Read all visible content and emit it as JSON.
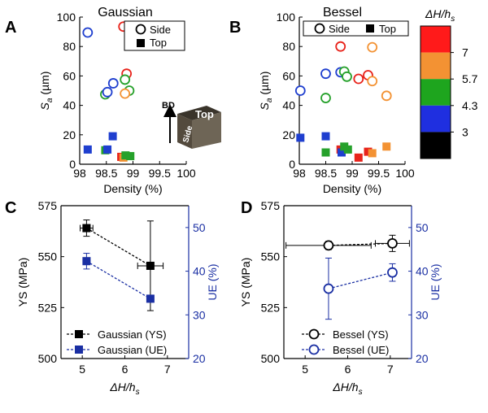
{
  "chart_data": [
    {
      "panel": "A",
      "type": "scatter",
      "title": "Gaussian",
      "xlabel": "Density (%)",
      "ylabel": "S_a (µm)",
      "xlim": [
        98,
        100
      ],
      "ylim": [
        0,
        100
      ],
      "xticks": [
        "98",
        "98.5",
        "99",
        "99.5",
        "100"
      ],
      "yticks": [
        "0",
        "20",
        "40",
        "60",
        "80",
        "100"
      ],
      "legend": [
        "Side",
        "Top"
      ],
      "series": [
        {
          "name": "Side",
          "marker": "open-circle",
          "points": [
            {
              "x": 98.15,
              "y": 89.5,
              "color": "#1f3fcf"
            },
            {
              "x": 98.82,
              "y": 93.5,
              "color": "#e8231b"
            },
            {
              "x": 98.88,
              "y": 61.5,
              "color": "#e8231b"
            },
            {
              "x": 98.63,
              "y": 55,
              "color": "#1f3fcf"
            },
            {
              "x": 98.85,
              "y": 57.5,
              "color": "#26a12b"
            },
            {
              "x": 98.93,
              "y": 50,
              "color": "#26a12b"
            },
            {
              "x": 98.85,
              "y": 48,
              "color": "#f39233"
            },
            {
              "x": 98.48,
              "y": 47.5,
              "color": "#26a12b"
            },
            {
              "x": 98.52,
              "y": 49,
              "color": "#1f3fcf"
            }
          ]
        },
        {
          "name": "Top",
          "marker": "filled-square",
          "points": [
            {
              "x": 98.15,
              "y": 10,
              "color": "#1f3fcf"
            },
            {
              "x": 98.48,
              "y": 9.5,
              "color": "#26a12b"
            },
            {
              "x": 98.52,
              "y": 10,
              "color": "#1f3fcf"
            },
            {
              "x": 98.62,
              "y": 19,
              "color": "#1f3fcf"
            },
            {
              "x": 98.78,
              "y": 5,
              "color": "#e8231b"
            },
            {
              "x": 98.82,
              "y": 4.5,
              "color": "#f39233"
            },
            {
              "x": 98.86,
              "y": 6,
              "color": "#26a12b"
            },
            {
              "x": 98.95,
              "y": 5.5,
              "color": "#26a12b"
            }
          ]
        }
      ],
      "inset": {
        "arrow_label": "BD",
        "top_face": "Top",
        "side_face": "Side"
      }
    },
    {
      "panel": "B",
      "type": "scatter",
      "title": "Bessel",
      "xlabel": "Density (%)",
      "ylabel": "S_a (µm)",
      "xlim": [
        98,
        100
      ],
      "ylim": [
        0,
        100
      ],
      "xticks": [
        "98",
        "98.5",
        "99",
        "99.5",
        "100"
      ],
      "yticks": [
        "0",
        "20",
        "40",
        "60",
        "80",
        "100"
      ],
      "legend": [
        "Side",
        "Top"
      ],
      "series": [
        {
          "name": "Side",
          "marker": "open-circle",
          "points": [
            {
              "x": 98.02,
              "y": 50,
              "color": "#1f3fcf"
            },
            {
              "x": 98.5,
              "y": 61.5,
              "color": "#1f3fcf"
            },
            {
              "x": 98.5,
              "y": 45,
              "color": "#26a12b"
            },
            {
              "x": 98.78,
              "y": 80,
              "color": "#e8231b"
            },
            {
              "x": 98.78,
              "y": 62.5,
              "color": "#1f3fcf"
            },
            {
              "x": 98.85,
              "y": 63,
              "color": "#26a12b"
            },
            {
              "x": 98.9,
              "y": 59.5,
              "color": "#26a12b"
            },
            {
              "x": 99.12,
              "y": 58,
              "color": "#e8231b"
            },
            {
              "x": 99.3,
              "y": 60.5,
              "color": "#e8231b"
            },
            {
              "x": 99.38,
              "y": 56.5,
              "color": "#f39233"
            },
            {
              "x": 99.38,
              "y": 79.5,
              "color": "#f39233"
            },
            {
              "x": 99.65,
              "y": 46.5,
              "color": "#f39233"
            }
          ]
        },
        {
          "name": "Top",
          "marker": "filled-square",
          "points": [
            {
              "x": 98.02,
              "y": 18,
              "color": "#1f3fcf"
            },
            {
              "x": 98.5,
              "y": 19,
              "color": "#1f3fcf"
            },
            {
              "x": 98.5,
              "y": 8,
              "color": "#26a12b"
            },
            {
              "x": 98.78,
              "y": 10,
              "color": "#e8231b"
            },
            {
              "x": 98.8,
              "y": 8,
              "color": "#1f3fcf"
            },
            {
              "x": 98.85,
              "y": 12,
              "color": "#26a12b"
            },
            {
              "x": 98.92,
              "y": 10,
              "color": "#26a12b"
            },
            {
              "x": 99.12,
              "y": 4.5,
              "color": "#e8231b"
            },
            {
              "x": 99.3,
              "y": 8.5,
              "color": "#e8231b"
            },
            {
              "x": 99.38,
              "y": 7.5,
              "color": "#f39233"
            },
            {
              "x": 99.65,
              "y": 12,
              "color": "#f39233"
            }
          ]
        }
      ],
      "colorbar": {
        "title": "ΔH/h_s",
        "tick_labels": [
          "7",
          "5.7",
          "4.3",
          "3"
        ],
        "colors": [
          "#ff1a1a",
          "#f39233",
          "#1ea51e",
          "#1f2fe0",
          "#000000"
        ]
      }
    },
    {
      "panel": "C",
      "type": "line",
      "xlabel": "ΔH/h_s",
      "ylabel": "YS (MPa)",
      "y2label": "UE (%)",
      "xlim": [
        4.5,
        7.5
      ],
      "ylim": [
        500,
        575
      ],
      "y2lim": [
        20,
        55
      ],
      "xticks": [
        "5",
        "6",
        "7"
      ],
      "yticks": [
        "500",
        "525",
        "550",
        "575"
      ],
      "y2ticks": [
        "20",
        "30",
        "40",
        "50"
      ],
      "series": [
        {
          "name": "Gaussian (YS)",
          "axis": "left",
          "marker": "filled-square",
          "color": "#000000",
          "points": [
            {
              "x": 5.1,
              "y": 564,
              "xerr": 0.15,
              "yerr": 4
            },
            {
              "x": 6.6,
              "y": 545.5,
              "xerr": 0.3,
              "yerr": 22
            }
          ]
        },
        {
          "name": "Gaussian (UE)",
          "axis": "right",
          "marker": "filled-square",
          "color": "#1a2fa3",
          "points": [
            {
              "x": 5.1,
              "y": 42.3,
              "yerr": 1.8
            },
            {
              "x": 6.6,
              "y": 33.7,
              "yerr": 0
            }
          ]
        }
      ]
    },
    {
      "panel": "D",
      "type": "line",
      "xlabel": "ΔH/h_s",
      "ylabel": "YS (MPa)",
      "y2label": "UE (%)",
      "xlim": [
        4.5,
        7.5
      ],
      "ylim": [
        500,
        575
      ],
      "y2lim": [
        20,
        55
      ],
      "xticks": [
        "5",
        "6",
        "7"
      ],
      "yticks": [
        "500",
        "525",
        "550",
        "575"
      ],
      "y2ticks": [
        "20",
        "30",
        "40",
        "50"
      ],
      "series": [
        {
          "name": "Bessel (YS)",
          "axis": "left",
          "marker": "open-circle",
          "color": "#000000",
          "points": [
            {
              "x": 5.55,
              "y": 555.5,
              "xerr": 1.0,
              "yerr": 2
            },
            {
              "x": 7.05,
              "y": 556.5,
              "xerr": 0.4,
              "yerr": 4
            }
          ]
        },
        {
          "name": "Bessel (UE)",
          "axis": "right",
          "marker": "open-circle",
          "color": "#1a2fa3",
          "points": [
            {
              "x": 5.55,
              "y": 36,
              "yerr": 7
            },
            {
              "x": 7.05,
              "y": 39.7,
              "yerr": 2
            }
          ]
        }
      ]
    }
  ]
}
